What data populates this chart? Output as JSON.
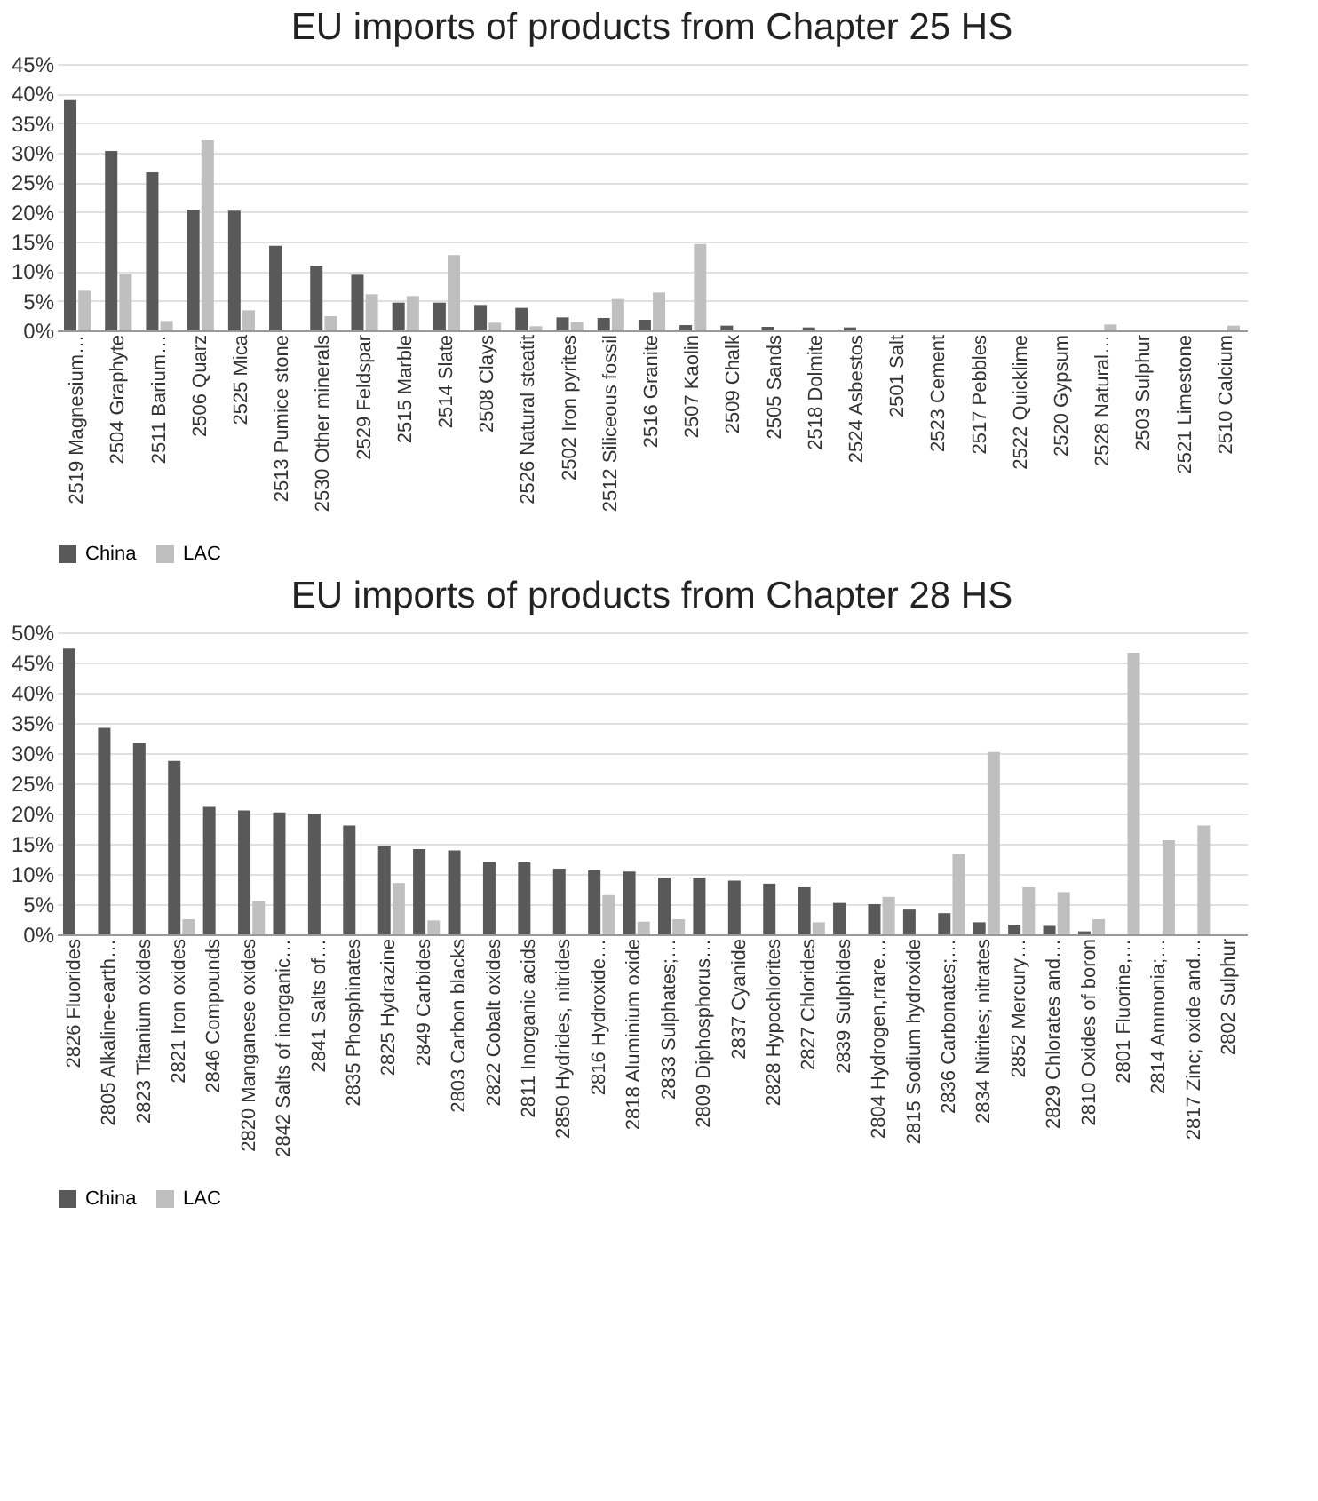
{
  "chart_data": [
    {
      "type": "bar",
      "title": "EU imports of products from Chapter 25 HS",
      "categories": [
        "2519 Magnesium…",
        "2504 Graphyte",
        "2511 Barium…",
        "2506 Quarz",
        "2525 Mica",
        "2513 Pumice stone",
        "2530 Other minerals",
        "2529 Feldspar",
        "2515 Marble",
        "2514 Slate",
        "2508 Clays",
        "2526 Natural steatit",
        "2502 Iron pyrites",
        "2512 Siliceous fossil",
        "2516 Granite",
        "2507 Kaolin",
        "2509 Chalk",
        "2505 Sands",
        "2518 Dolmite",
        "2524 Asbestos",
        "2501 Salt",
        "2523 Cement",
        "2517 Pebbles",
        "2522 Quicklime",
        "2520 Gypsum",
        "2528 Natural…",
        "2503 Sulphur",
        "2521 Limestone",
        "2510 Calcium"
      ],
      "series": [
        {
          "name": "China",
          "color": "#595959",
          "values": [
            38.9,
            30.3,
            26.7,
            20.4,
            20.2,
            14.3,
            10.9,
            9.4,
            4.7,
            4.7,
            4.3,
            3.8,
            2.2,
            2.1,
            1.8,
            0.9,
            0.8,
            0.6,
            0.5,
            0.5,
            0,
            0,
            0,
            0,
            0,
            0,
            0,
            0,
            0
          ]
        },
        {
          "name": "LAC",
          "color": "#bfbfbf",
          "values": [
            6.7,
            9.5,
            1.6,
            32.1,
            3.4,
            0,
            2.4,
            6.1,
            5.8,
            12.7,
            1.3,
            0.7,
            1.4,
            5.3,
            6.4,
            14.6,
            0,
            0,
            0,
            0,
            null,
            0,
            0,
            0,
            0,
            1.0,
            0,
            0,
            0.8
          ]
        }
      ],
      "ylim": [
        0,
        45
      ],
      "yticks": [
        {
          "value": 0,
          "label": "0%"
        },
        {
          "value": 5,
          "label": "5%"
        },
        {
          "value": 10,
          "label": "10%"
        },
        {
          "value": 15,
          "label": "15%"
        },
        {
          "value": 20,
          "label": "20%"
        },
        {
          "value": 25,
          "label": "25%"
        },
        {
          "value": 30,
          "label": "30%"
        },
        {
          "value": 35,
          "label": "35%"
        },
        {
          "value": 40,
          "label": "40%"
        },
        {
          "value": 45,
          "label": "45%"
        }
      ],
      "grid": "y",
      "legend": "bottom"
    },
    {
      "type": "bar",
      "title": "EU imports of products from Chapter 28 HS",
      "categories": [
        "2826 Fluorides",
        "2805 Alkaline-earth…",
        "2823 Titanium oxides",
        "2821 Iron oxides",
        "2846 Compounds",
        "2820 Manganese oxides",
        "2842 Salts of inorganic…",
        "2841 Salts of…",
        "2835 Phosphinates",
        "2825 Hydrazine",
        "2849 Carbides",
        "2803 Carbon blacks",
        "2822 Cobalt oxides",
        "2811 Inorganic acids",
        "2850 Hydrides, nitrides",
        "2816 Hydroxide…",
        "2818 Aluminium oxide",
        "2833 Sulphates;…",
        "2809 Diphosphorus…",
        "2837 Cyanide",
        "2828 Hypochlorites",
        "2827 Chlorides",
        "2839 Sulphides",
        "2804 Hydrogen,rrare…",
        "2815 Sodium hydroxide",
        "2836 Carbonates;…",
        "2834 Nitrites; nitrates",
        "2852 Mercury…",
        "2829 Chlorates and…",
        "2810 Oxides of boron",
        "2801 Fluorine,…",
        "2814 Ammonia;…",
        "2817 Zinc; oxide and…",
        "2802 Sulphur"
      ],
      "series": [
        {
          "name": "China",
          "color": "#595959",
          "values": [
            47.3,
            34.2,
            31.7,
            28.7,
            21.1,
            20.5,
            20.2,
            20.0,
            18.0,
            14.6,
            14.1,
            13.9,
            12.0,
            11.9,
            10.9,
            10.6,
            10.4,
            9.4,
            9.4,
            8.9,
            8.4,
            7.8,
            5.2,
            5.0,
            4.1,
            3.5,
            2.0,
            1.6,
            1.4,
            0.5,
            0,
            0,
            0,
            0
          ]
        },
        {
          "name": "LAC",
          "color": "#bfbfbf",
          "values": [
            0,
            0,
            0,
            2.5,
            0,
            5.5,
            0,
            0,
            null,
            8.5,
            2.3,
            0,
            0,
            0,
            0,
            6.5,
            2.1,
            2.5,
            0,
            0,
            0,
            2.0,
            0,
            6.2,
            0,
            13.3,
            30.2,
            7.8,
            7.0,
            2.5,
            46.6,
            15.6,
            18.0,
            0
          ]
        }
      ],
      "ylim": [
        0,
        50
      ],
      "yticks": [
        {
          "value": 0,
          "label": "0%"
        },
        {
          "value": 5,
          "label": "5%"
        },
        {
          "value": 10,
          "label": "10%"
        },
        {
          "value": 15,
          "label": "15%"
        },
        {
          "value": 20,
          "label": "20%"
        },
        {
          "value": 25,
          "label": "25%"
        },
        {
          "value": 30,
          "label": "30%"
        },
        {
          "value": 35,
          "label": "35%"
        },
        {
          "value": 40,
          "label": "40%"
        },
        {
          "value": 45,
          "label": "45%"
        },
        {
          "value": 50,
          "label": "50%"
        }
      ],
      "grid": "y",
      "legend": "bottom"
    }
  ]
}
